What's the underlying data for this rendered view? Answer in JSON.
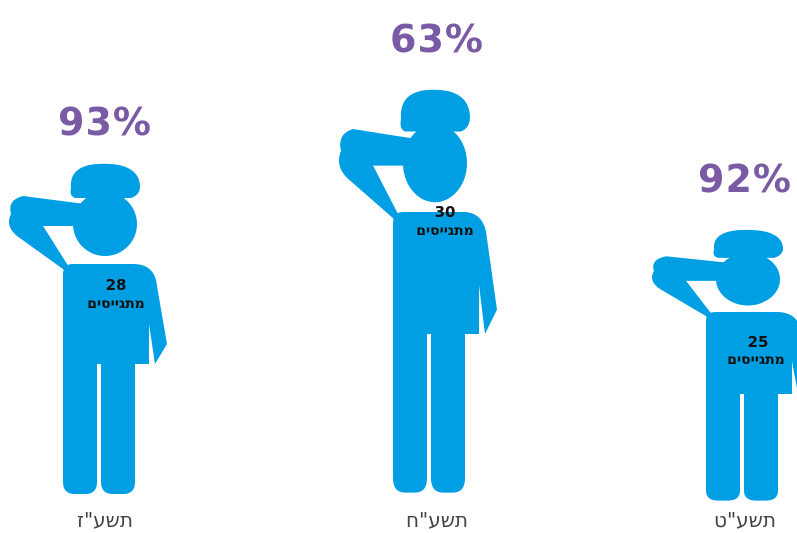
{
  "chart_data": {
    "type": "bar",
    "categories": [
      "תשע\"ז",
      "תשע\"ח",
      "תשע\"ט"
    ],
    "series": [
      {
        "values": [
          28,
          30,
          25
        ]
      },
      {
        "values": [
          93,
          63,
          92
        ]
      }
    ],
    "count_unit": "מתגייסים",
    "percent_labels": [
      "93%",
      "63%",
      "92%"
    ],
    "count_labels": [
      "28",
      "30",
      "25"
    ]
  },
  "colors": {
    "figure": "#009fe3",
    "percent": "#7a59a5",
    "label": "#444444",
    "count_text": "#111111"
  }
}
